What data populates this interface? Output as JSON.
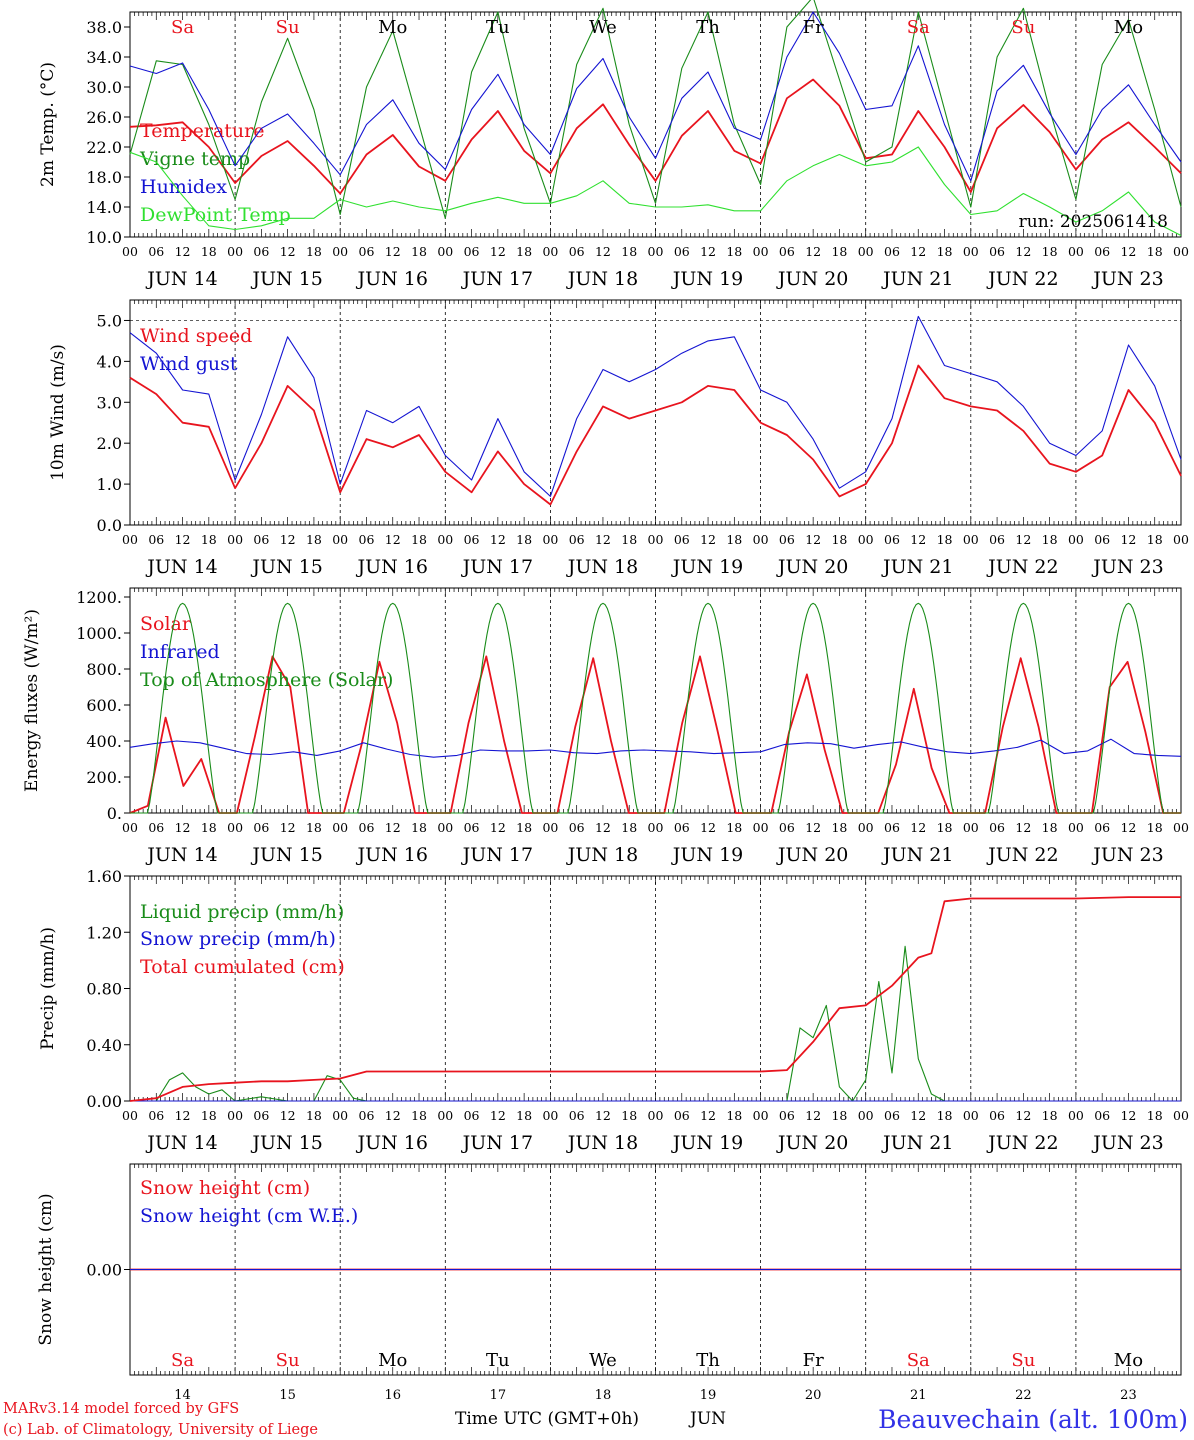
{
  "run_label": "run: 2025061418",
  "footer": {
    "model": "MARv3.14 model forced by GFS",
    "copyright": "(c) Lab. of Climatology, University of Liege",
    "xlabel": "Time UTC (GMT+0h)",
    "month": "JUN",
    "station": "Beauvechain (alt. 100m)"
  },
  "days": {
    "weekdays": [
      "Sa",
      "Su",
      "Mo",
      "Tu",
      "We",
      "Th",
      "Fr",
      "Sa",
      "Su",
      "Mo"
    ],
    "weekday_colors": [
      "#e8141e",
      "#e8141e",
      "#000000",
      "#000000",
      "#000000",
      "#000000",
      "#000000",
      "#e8141e",
      "#e8141e",
      "#000000"
    ],
    "dates": [
      "JUN 14",
      "JUN 15",
      "JUN 16",
      "JUN 17",
      "JUN 18",
      "JUN 19",
      "JUN 20",
      "JUN 21",
      "JUN 22",
      "JUN 23"
    ],
    "day_numbers": [
      "14",
      "15",
      "16",
      "17",
      "18",
      "19",
      "20",
      "21",
      "22",
      "23"
    ],
    "hour_ticks": [
      "00",
      "06",
      "12",
      "18"
    ],
    "end_tick": "00"
  },
  "colors": {
    "red": "#e8141e",
    "green": "#1a8c1a",
    "blue": "#1414d2",
    "light_green": "#30e030",
    "station_blue": "#3232e6"
  },
  "chart_data": [
    {
      "type": "line",
      "ylabel": "2m Temp. (°C)",
      "ylim": [
        10,
        40
      ],
      "yticks": [
        10,
        14,
        18,
        22,
        26,
        30,
        34,
        38
      ],
      "ytick_labels": [
        "10.0",
        "14.0",
        "18.0",
        "22.0",
        "26.0",
        "30.0",
        "34.0",
        "38.0"
      ],
      "x_hours": [
        0,
        6,
        12,
        18,
        24,
        30,
        36,
        42,
        48,
        54,
        60,
        66,
        72,
        78,
        84,
        90,
        96,
        102,
        108,
        114,
        120,
        126,
        132,
        138,
        144,
        150,
        156,
        162,
        168,
        174,
        180,
        186,
        192,
        198,
        204,
        210,
        216,
        222,
        228,
        234,
        240
      ],
      "series": [
        {
          "name": "Temperature",
          "color": "#e8141e",
          "values": [
            24.7,
            24.9,
            25.3,
            22.0,
            17.2,
            20.8,
            22.8,
            19.5,
            15.8,
            21.0,
            23.6,
            19.4,
            17.5,
            23.0,
            26.8,
            21.5,
            18.5,
            24.5,
            27.7,
            22.3,
            17.5,
            23.5,
            26.8,
            21.5,
            19.8,
            28.5,
            31.0,
            27.5,
            20.5,
            21.0,
            26.8,
            22.0,
            16.0,
            24.5,
            27.6,
            24.0,
            19.0,
            23.0,
            25.3,
            22.0,
            18.5
          ]
        },
        {
          "name": "Vigne temp",
          "color": "#1a8c1a",
          "values": [
            21.0,
            33.5,
            33.0,
            25.0,
            15.0,
            28.0,
            36.5,
            27.0,
            13.0,
            30.0,
            37.5,
            25.0,
            12.5,
            32.0,
            40.0,
            24.5,
            14.5,
            33.0,
            40.5,
            25.0,
            14.5,
            32.5,
            40.0,
            25.0,
            17.0,
            38.0,
            42.0,
            31.0,
            20.0,
            22.0,
            40.0,
            27.0,
            14.0,
            34.0,
            40.5,
            27.0,
            15.0,
            33.0,
            39.0,
            27.0,
            14.0
          ]
        },
        {
          "name": "Humidex",
          "color": "#1414d2",
          "values": [
            32.8,
            31.8,
            33.2,
            27.0,
            19.5,
            24.5,
            26.4,
            22.5,
            18.3,
            25.0,
            28.3,
            22.5,
            19.0,
            27.0,
            31.7,
            25.0,
            21.0,
            29.8,
            33.8,
            26.0,
            20.5,
            28.5,
            32.0,
            24.5,
            23.0,
            34.0,
            40.0,
            34.5,
            27.0,
            27.5,
            35.5,
            25.0,
            17.5,
            29.5,
            32.9,
            26.5,
            21.0,
            27.0,
            30.3,
            25.0,
            20.0
          ]
        },
        {
          "name": "DewPoint Temp",
          "color": "#30e030",
          "values": [
            21.3,
            20.0,
            15.5,
            11.5,
            11.0,
            11.5,
            12.5,
            12.5,
            15.0,
            14.0,
            14.8,
            14.0,
            13.5,
            14.5,
            15.3,
            14.5,
            14.5,
            15.5,
            17.5,
            14.5,
            14.0,
            14.0,
            14.3,
            13.5,
            13.5,
            17.5,
            19.5,
            21.0,
            19.5,
            20.0,
            22.0,
            17.0,
            13.0,
            13.5,
            15.8,
            14.0,
            12.0,
            13.5,
            16.0,
            12.0,
            10.2
          ]
        }
      ]
    },
    {
      "type": "line",
      "ylabel": "10m Wind (m/s)",
      "ylim": [
        0,
        5.5
      ],
      "yticks": [
        0,
        1,
        2,
        3,
        4,
        5
      ],
      "ytick_labels": [
        "0.0",
        "1.0",
        "2.0",
        "3.0",
        "4.0",
        "5.0"
      ],
      "x_hours": [
        0,
        6,
        12,
        18,
        24,
        30,
        36,
        42,
        48,
        54,
        60,
        66,
        72,
        78,
        84,
        90,
        96,
        102,
        108,
        114,
        120,
        126,
        132,
        138,
        144,
        150,
        156,
        162,
        168,
        174,
        180,
        186,
        192,
        198,
        204,
        210,
        216,
        222,
        228,
        234,
        240
      ],
      "series": [
        {
          "name": "Wind speed",
          "color": "#e8141e",
          "values": [
            3.6,
            3.2,
            2.5,
            2.4,
            0.9,
            2.0,
            3.4,
            2.8,
            0.8,
            2.1,
            1.9,
            2.2,
            1.3,
            0.8,
            1.8,
            1.0,
            0.5,
            1.8,
            2.9,
            2.6,
            2.8,
            3.0,
            3.4,
            3.3,
            2.5,
            2.2,
            1.6,
            0.7,
            1.0,
            2.0,
            3.9,
            3.1,
            2.9,
            2.8,
            2.3,
            1.5,
            1.3,
            1.7,
            3.3,
            2.5,
            1.2
          ]
        },
        {
          "name": "Wind gust",
          "color": "#1414d2",
          "values": [
            4.7,
            4.2,
            3.3,
            3.2,
            1.1,
            2.7,
            4.6,
            3.6,
            1.0,
            2.8,
            2.5,
            2.9,
            1.7,
            1.1,
            2.6,
            1.3,
            0.7,
            2.6,
            3.8,
            3.5,
            3.8,
            4.2,
            4.5,
            4.6,
            3.3,
            3.0,
            2.1,
            0.9,
            1.3,
            2.6,
            5.1,
            3.9,
            3.7,
            3.5,
            2.9,
            2.0,
            1.7,
            2.3,
            4.4,
            3.4,
            1.6
          ]
        }
      ]
    },
    {
      "type": "line",
      "ylabel": "Energy fluxes (W/m²)",
      "ylim": [
        0,
        1250
      ],
      "yticks": [
        0,
        200,
        400,
        600,
        800,
        1000,
        1200
      ],
      "ytick_labels": [
        "0.",
        "200.",
        "400.",
        "600.",
        "800.",
        "1000.",
        "1200."
      ],
      "daily_peaks": {
        "Solar": [
          530,
          870,
          840,
          870,
          860,
          870,
          770,
          690,
          860,
          840
        ],
        "Top of Atmosphere (Solar)": [
          1165,
          1165,
          1165,
          1165,
          1165,
          1165,
          1165,
          1165,
          1165,
          1165
        ]
      },
      "series": [
        {
          "name": "Solar",
          "color": "#e8141e",
          "values": [
            0,
            40,
            530,
            150,
            300,
            0,
            0,
            420,
            870,
            700,
            0,
            0,
            0,
            380,
            840,
            500,
            0,
            0,
            0,
            500,
            870,
            400,
            0,
            0,
            0,
            480,
            860,
            400,
            0,
            0,
            0,
            500,
            870,
            450,
            0,
            0,
            0,
            450,
            770,
            350,
            0,
            0,
            0,
            270,
            690,
            250,
            0,
            0,
            0,
            480,
            860,
            480,
            0,
            0,
            0,
            700,
            840,
            450,
            0,
            0
          ]
        },
        {
          "name": "Infrared",
          "color": "#1414d2",
          "values": [
            365,
            385,
            400,
            390,
            360,
            330,
            325,
            340,
            320,
            345,
            390,
            355,
            325,
            310,
            320,
            350,
            345,
            345,
            350,
            335,
            330,
            345,
            350,
            345,
            340,
            330,
            335,
            340,
            380,
            390,
            385,
            360,
            380,
            395,
            365,
            340,
            330,
            345,
            365,
            405,
            330,
            345,
            410,
            330,
            320,
            315
          ]
        },
        {
          "name": "Top of Atmosphere (Solar)",
          "color": "#1a8c1a",
          "values": []
        }
      ]
    },
    {
      "type": "line",
      "ylabel": "Precip (mm/h)",
      "ylim": [
        0,
        1.6
      ],
      "yticks": [
        0,
        0.4,
        0.8,
        1.2,
        1.6
      ],
      "ytick_labels": [
        "0.00",
        "0.40",
        "0.80",
        "1.20",
        "1.60"
      ],
      "series": [
        {
          "name": "Liquid precip (mm/h)",
          "color": "#1a8c1a",
          "x_hours": [
            0,
            6,
            9,
            12,
            15,
            18,
            21,
            24,
            30,
            36,
            42,
            45,
            48,
            51,
            54,
            150,
            153,
            156,
            159,
            162,
            165,
            168,
            171,
            174,
            177,
            180,
            183,
            186,
            189,
            192
          ],
          "values": [
            0,
            0,
            0.15,
            0.2,
            0.1,
            0.05,
            0.08,
            0,
            0.03,
            0,
            0,
            0.18,
            0.15,
            0.02,
            0,
            0,
            0.52,
            0.45,
            0.68,
            0.1,
            0,
            0.15,
            0.85,
            0.2,
            1.1,
            0.3,
            0.05,
            0,
            0,
            0
          ]
        },
        {
          "name": "Snow precip (mm/h)",
          "color": "#1414d2",
          "x_hours": [
            0,
            240
          ],
          "values": [
            0,
            0
          ]
        },
        {
          "name": "Total cumulated (cm)",
          "color": "#e8141e",
          "x_hours": [
            0,
            6,
            12,
            18,
            24,
            30,
            36,
            42,
            48,
            54,
            60,
            72,
            84,
            96,
            108,
            120,
            132,
            144,
            150,
            156,
            162,
            168,
            174,
            180,
            183,
            186,
            192,
            204,
            216,
            228,
            240
          ],
          "values": [
            0,
            0.02,
            0.1,
            0.12,
            0.13,
            0.14,
            0.14,
            0.15,
            0.16,
            0.21,
            0.21,
            0.21,
            0.21,
            0.21,
            0.21,
            0.21,
            0.21,
            0.21,
            0.22,
            0.42,
            0.66,
            0.68,
            0.82,
            1.02,
            1.05,
            1.42,
            1.44,
            1.44,
            1.44,
            1.45,
            1.45
          ]
        }
      ]
    },
    {
      "type": "line",
      "ylabel": "Snow height (cm)",
      "ylim": [
        -1,
        1
      ],
      "yticks": [
        0
      ],
      "ytick_labels": [
        "0.00"
      ],
      "x_hours": [
        0,
        240
      ],
      "series": [
        {
          "name": "Snow height (cm)",
          "color": "#e8141e",
          "values": [
            0,
            0
          ]
        },
        {
          "name": "Snow height (cm W.E.)",
          "color": "#1414d2",
          "values": [
            0,
            0
          ]
        }
      ]
    }
  ]
}
